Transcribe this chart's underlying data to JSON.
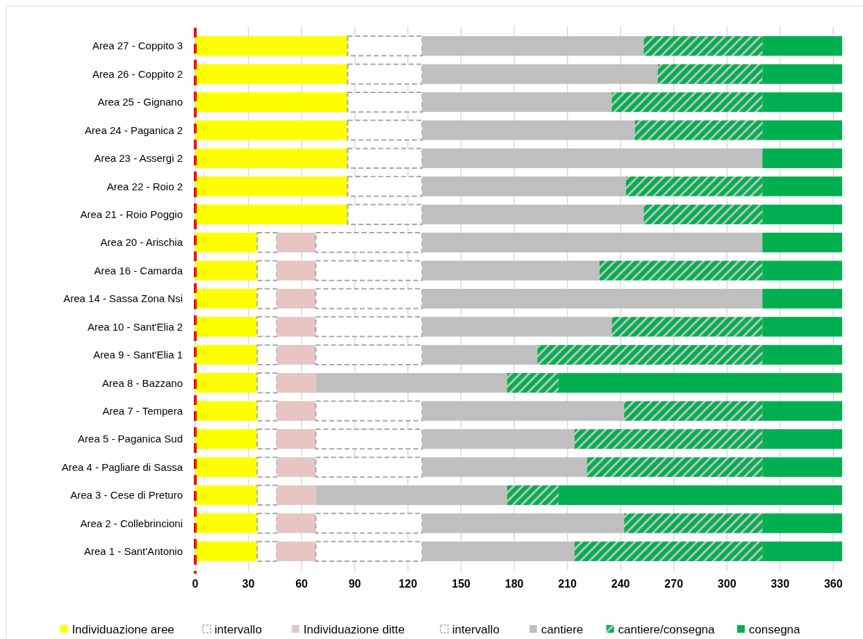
{
  "chart_data": {
    "type": "bar",
    "orientation": "horizontal",
    "stacked": true,
    "categories": [
      "Area 27 - Coppito 3",
      "Area 26 - Coppito 2",
      "Area 25 - Gignano",
      "Area 24 - Paganica 2",
      "Area 23 - Assergi 2",
      "Area 22 - Roio 2",
      "Area 21 - Roio Poggio",
      "Area 20 - Arischia",
      "Area 16 - Camarda",
      "Area 14 - Sassa Zona Nsi",
      "Area 10 - Sant'Elia 2",
      "Area 9 - Sant'Elia 1",
      "Area 8 - Bazzano",
      "Area 7 - Tempera",
      "Area 5 - Paganica Sud",
      "Area 4 - Pagliare di Sassa",
      "Area 3 - Cese di Preturo",
      "Area 2 - Collebrincioni",
      "Area 1 - Sant'Antonio"
    ],
    "series": [
      {
        "name": "Individuazione aree",
        "color": "#ffff00",
        "values": [
          86,
          86,
          86,
          86,
          86,
          86,
          86,
          35,
          35,
          35,
          35,
          35,
          35,
          35,
          35,
          35,
          35,
          35,
          35
        ]
      },
      {
        "name": "intervallo",
        "color": "#ffffff",
        "line_style": "dashed",
        "values": [
          null,
          null,
          null,
          null,
          null,
          null,
          null,
          11,
          11,
          11,
          11,
          11,
          11,
          11,
          11,
          11,
          11,
          11,
          11
        ]
      },
      {
        "name": "Individuazione ditte",
        "color": "#e6c5c3",
        "values": [
          null,
          null,
          null,
          null,
          null,
          null,
          null,
          22,
          22,
          22,
          22,
          22,
          22,
          22,
          22,
          22,
          22,
          22,
          22
        ]
      },
      {
        "name": "intervallo",
        "color": "#ffffff",
        "line_style": "dashed",
        "values": [
          42,
          42,
          42,
          42,
          42,
          42,
          42,
          60,
          60,
          60,
          60,
          60,
          null,
          60,
          60,
          60,
          null,
          60,
          60
        ]
      },
      {
        "name": "cantiere",
        "color": "#bfbfbf",
        "values": [
          125,
          133,
          107,
          120,
          192,
          115,
          125,
          192,
          100,
          192,
          107,
          65,
          108,
          114,
          86,
          93,
          108,
          114,
          86
        ]
      },
      {
        "name": "cantiere/consegna",
        "color": "#00b050",
        "values": [
          67,
          59,
          85,
          72,
          null,
          77,
          67,
          null,
          92,
          null,
          85,
          127,
          29,
          78,
          106,
          99,
          29,
          78,
          106
        ]
      },
      {
        "name": "consegna",
        "color": "#00b050",
        "values": [
          45,
          45,
          45,
          45,
          45,
          45,
          45,
          45,
          45,
          45,
          45,
          45,
          160,
          45,
          45,
          45,
          160,
          45,
          45
        ]
      }
    ],
    "xlim": [
      0,
      365
    ],
    "xticks": [
      0,
      30,
      60,
      90,
      120,
      150,
      180,
      210,
      240,
      270,
      300,
      330,
      360
    ],
    "ref_lines": [
      {
        "axis": "x",
        "value": 0,
        "color": "#ff0000",
        "line_style": "dashed"
      }
    ],
    "grid": "x",
    "legend": "bottom"
  }
}
